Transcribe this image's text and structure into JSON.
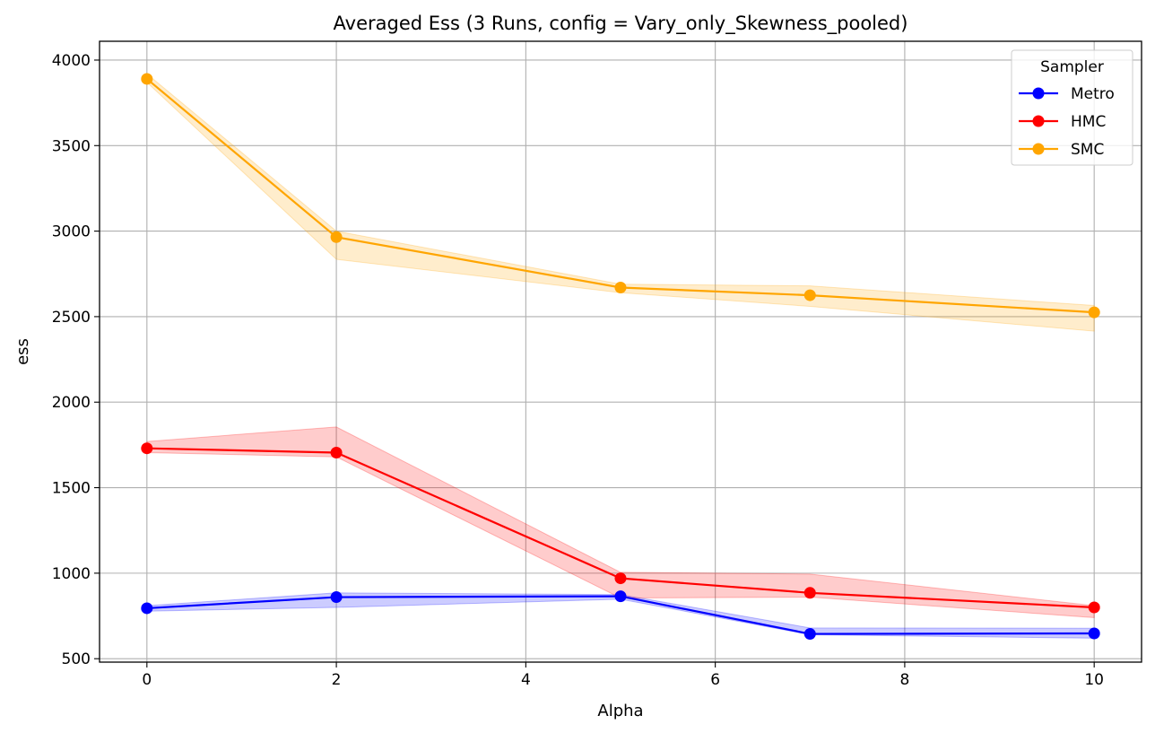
{
  "chart_data": {
    "type": "line",
    "title": "Averaged Ess (3 Runs, config = Vary_only_Skewness_pooled)",
    "xlabel": "Alpha",
    "ylabel": "ess",
    "xlim": [
      -0.5,
      10.5
    ],
    "ylim": [
      480,
      4110
    ],
    "xticks": [
      0,
      2,
      4,
      6,
      8,
      10
    ],
    "yticks": [
      500,
      1000,
      1500,
      2000,
      2500,
      3000,
      3500,
      4000
    ],
    "grid": true,
    "legend": {
      "title": "Sampler",
      "position": "top-right"
    },
    "x": [
      0,
      2,
      5,
      7,
      10
    ],
    "series": [
      {
        "name": "Metro",
        "color": "#0000ff",
        "values": [
          795,
          860,
          865,
          645,
          648
        ],
        "band_upper": [
          810,
          885,
          875,
          680,
          678
        ],
        "band_lower": [
          778,
          800,
          848,
          640,
          620
        ]
      },
      {
        "name": "HMC",
        "color": "#ff0000",
        "values": [
          1730,
          1705,
          970,
          885,
          800
        ],
        "band_upper": [
          1770,
          1855,
          1005,
          995,
          810
        ],
        "band_lower": [
          1705,
          1680,
          855,
          860,
          740
        ]
      },
      {
        "name": "SMC",
        "color": "#ffa500",
        "values": [
          3890,
          2965,
          2670,
          2625,
          2525
        ],
        "band_upper": [
          3920,
          3000,
          2690,
          2680,
          2565
        ],
        "band_lower": [
          3870,
          2835,
          2640,
          2560,
          2415
        ]
      }
    ]
  }
}
